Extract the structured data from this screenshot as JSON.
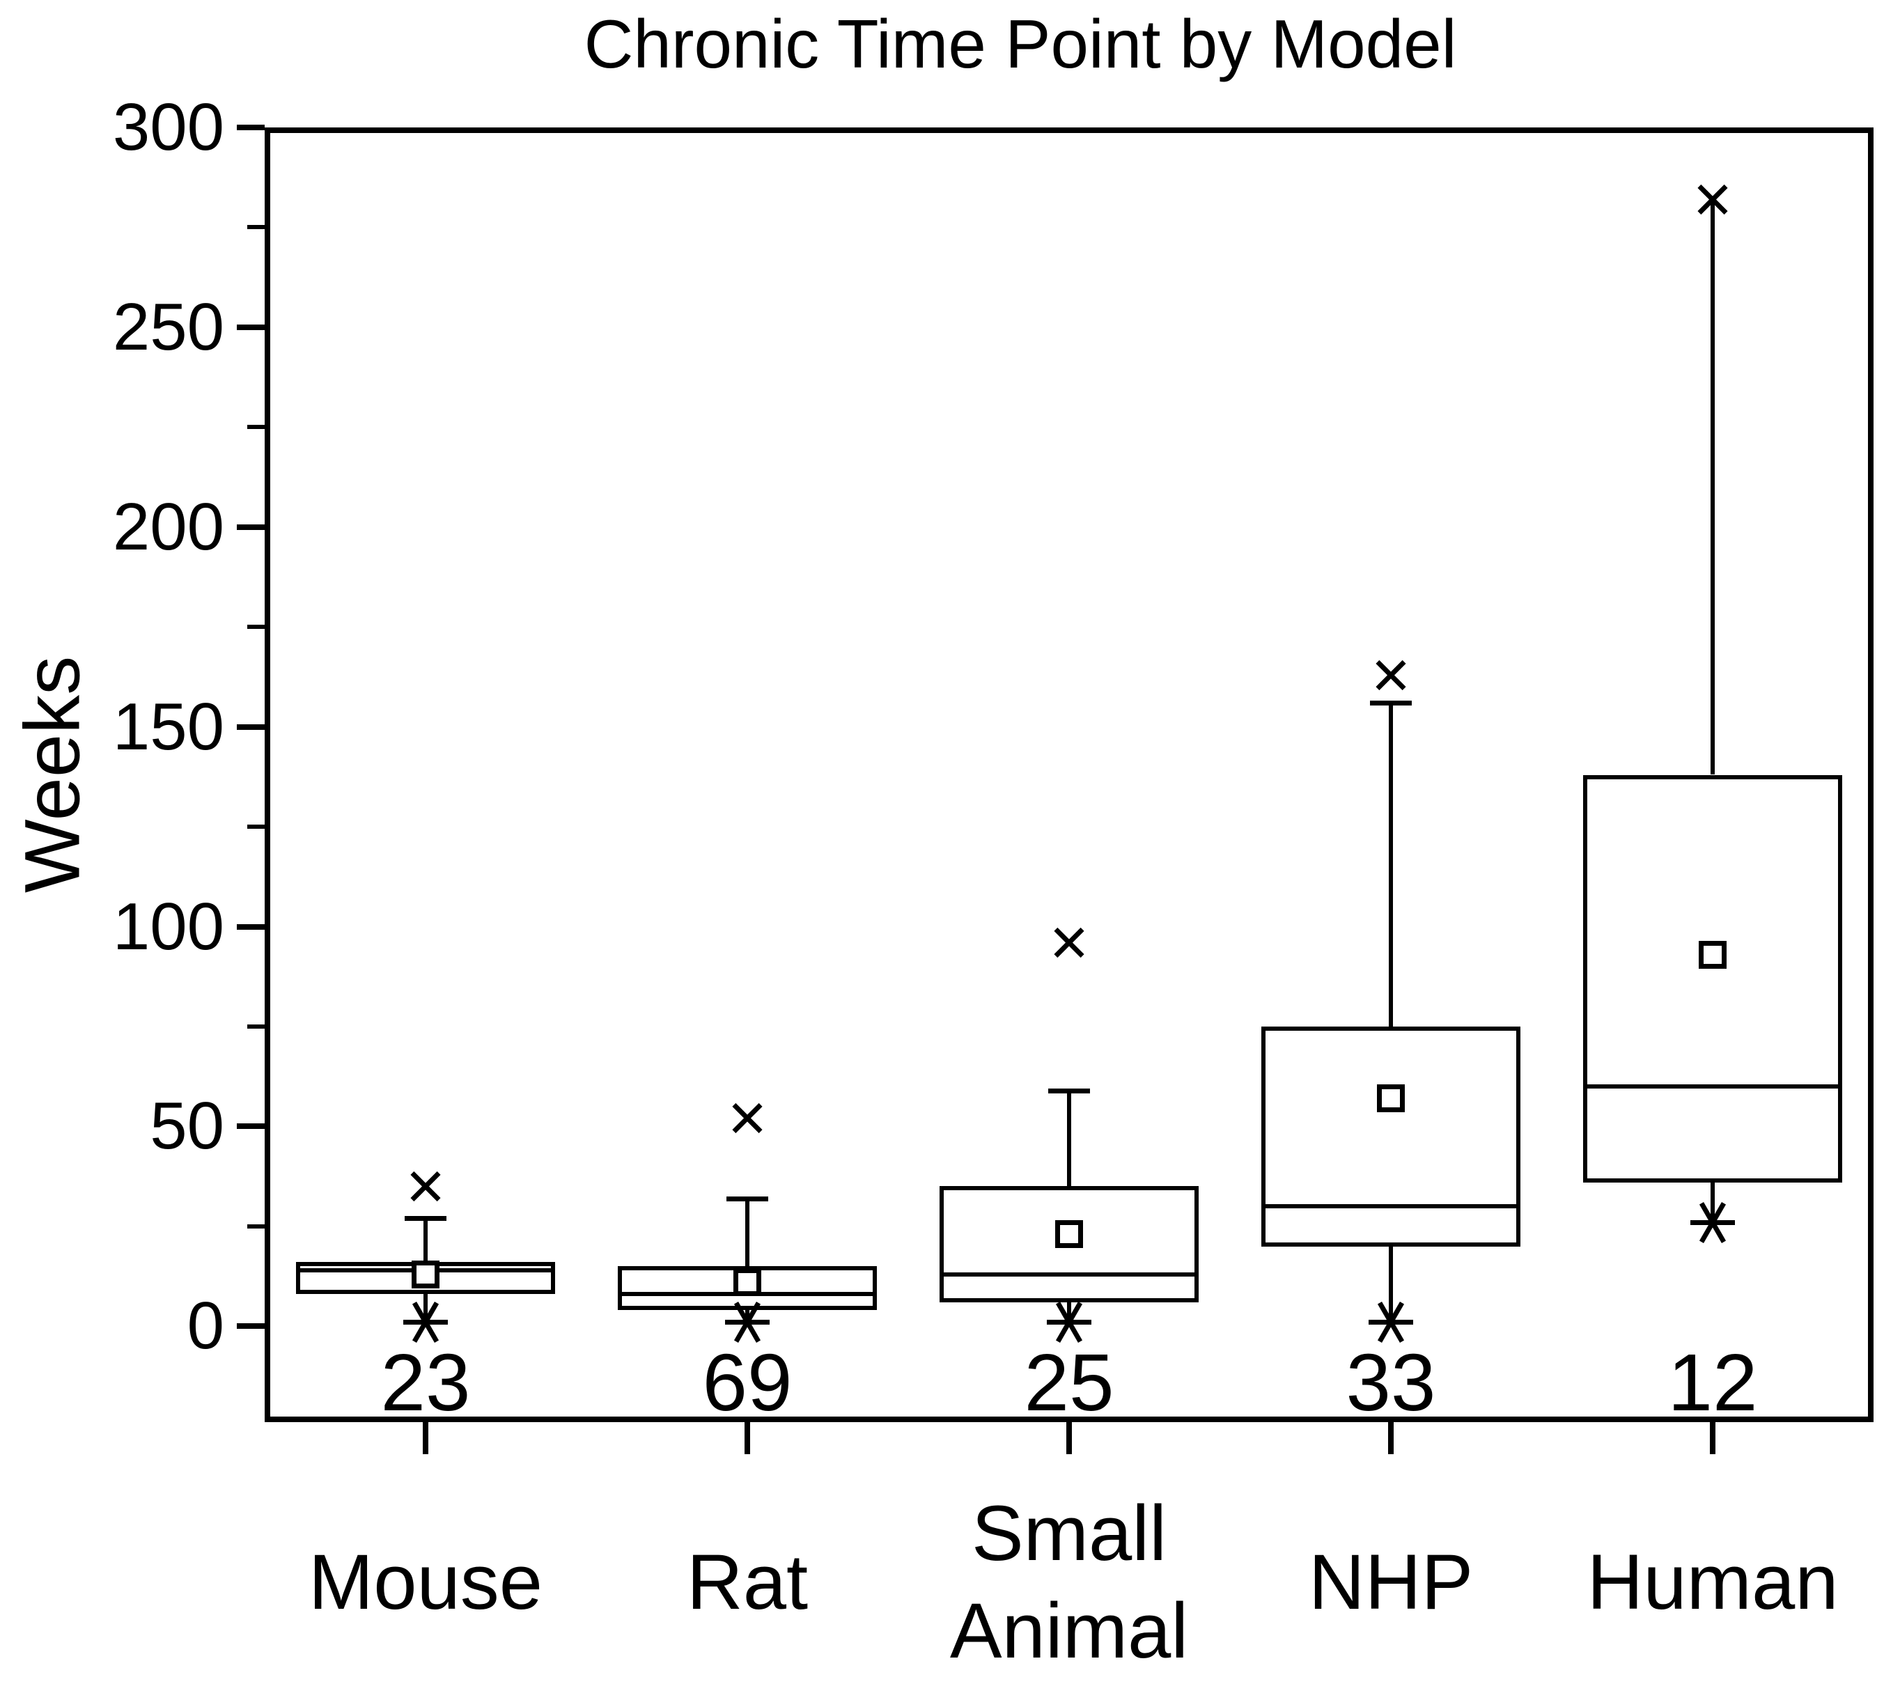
{
  "colors": {
    "foreground": "#000000",
    "background": "#ffffff"
  },
  "chart_data": {
    "type": "box",
    "title": "Chronic Time Point by Model",
    "xlabel": "",
    "ylabel": "Weeks",
    "ylim": [
      -24,
      300
    ],
    "y_major_ticks": [
      0,
      50,
      100,
      150,
      200,
      250,
      300
    ],
    "y_minor_ticks": [
      25,
      75,
      125,
      175,
      225,
      275
    ],
    "grid": false,
    "legend": null,
    "categories": [
      "Mouse",
      "Rat",
      "Small Animal",
      "NHP",
      "Human"
    ],
    "boxes": [
      {
        "label": "Mouse",
        "label_lines": "Mouse",
        "n": 23,
        "q1": 8,
        "median": 14,
        "q3": 16,
        "mean": 13,
        "whisker_low": 2,
        "whisker_high": 27,
        "cap_high": true,
        "outlier_high": 35,
        "outlier_low": 1
      },
      {
        "label": "Rat",
        "label_lines": "Rat",
        "n": 69,
        "q1": 4,
        "median": 8,
        "q3": 15,
        "mean": 11,
        "whisker_low": 2,
        "whisker_high": 32,
        "cap_high": true,
        "outlier_high": 52,
        "outlier_low": 1
      },
      {
        "label": "Small Animal",
        "label_lines": "Small\nAnimal",
        "n": 25,
        "q1": 6,
        "median": 13,
        "q3": 35,
        "mean": 23,
        "whisker_low": 2,
        "whisker_high": 59,
        "cap_high": true,
        "outlier_high": 96,
        "outlier_low": 1
      },
      {
        "label": "NHP",
        "label_lines": "NHP",
        "n": 33,
        "q1": 20,
        "median": 30,
        "q3": 75,
        "mean": 57,
        "whisker_low": 2,
        "whisker_high": 156,
        "cap_high": true,
        "outlier_high": 163,
        "outlier_low": 1
      },
      {
        "label": "Human",
        "label_lines": "Human",
        "n": 12,
        "q1": 36,
        "median": 60,
        "q3": 138,
        "mean": 93,
        "whisker_low": 26,
        "whisker_high": 282,
        "cap_high": false,
        "outlier_high": 282,
        "outlier_low": 26
      }
    ],
    "annotations": {
      "counts_shown_above_axis": [
        "23",
        "69",
        "25",
        "33",
        "12"
      ],
      "mean_marker": "open square",
      "high_marker": "x cross",
      "low_marker": "asterisk star"
    }
  }
}
